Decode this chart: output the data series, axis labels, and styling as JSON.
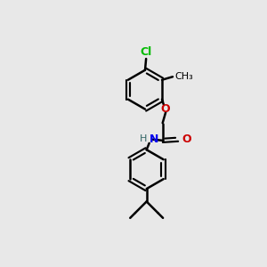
{
  "bg_color": "#e8e8e8",
  "bond_color": "#000000",
  "bond_width": 1.8,
  "cl_color": "#00bb00",
  "o_color": "#cc0000",
  "n_color": "#0000ee",
  "h_color": "#336666",
  "c_color": "#000000",
  "font_size": 8,
  "figsize": [
    3.0,
    3.0
  ],
  "dpi": 100,
  "xlim": [
    0,
    10
  ],
  "ylim": [
    0,
    10
  ]
}
